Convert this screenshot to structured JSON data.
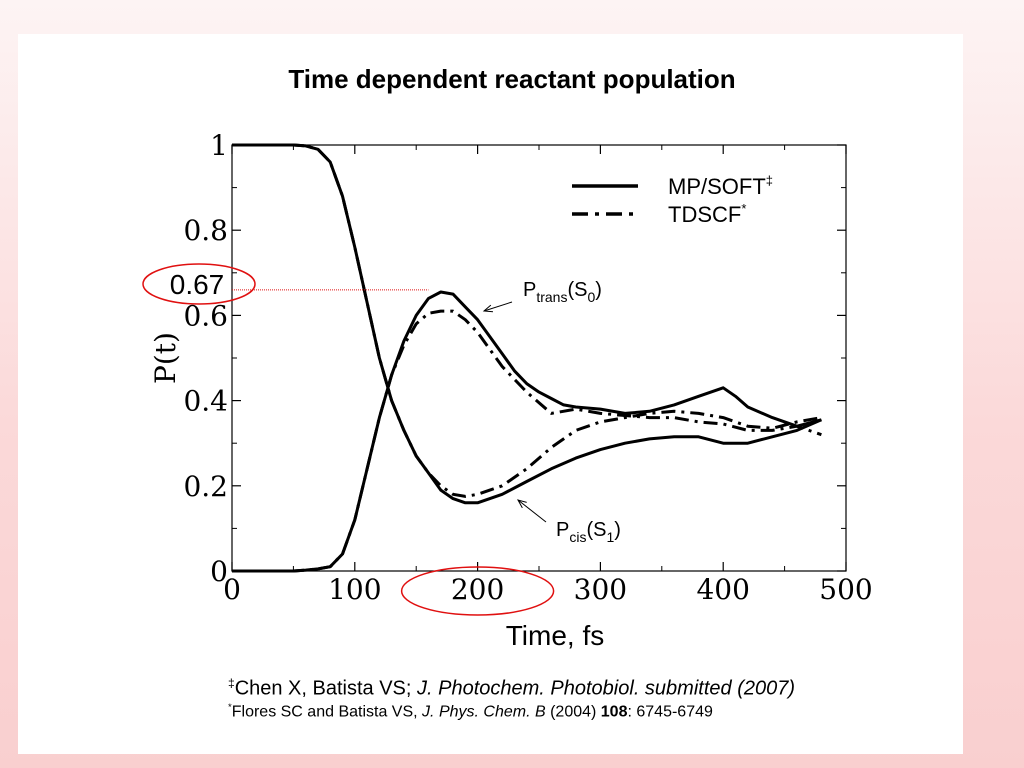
{
  "slide_title": "Time dependent reactant population",
  "chart_data": {
    "type": "line",
    "xlabel": "Time, fs",
    "ylabel": "P(t)",
    "xlim": [
      0,
      500
    ],
    "ylim": [
      0,
      1
    ],
    "xticks": [
      "0",
      "100",
      "200",
      "300",
      "400",
      "500"
    ],
    "yticks": [
      "0",
      "0.2",
      "0.4",
      "0.6",
      "0.8",
      "1"
    ],
    "grid": false,
    "legend_position": "top-right",
    "legend": [
      {
        "label": "MP/SOFT",
        "mark": "‡",
        "style": "solid"
      },
      {
        "label": "TDSCF",
        "mark": "*",
        "style": "dash-dot"
      }
    ],
    "curve_labels": [
      {
        "main": "P",
        "sub": "trans",
        "state": "S",
        "state_sub": "0",
        "at": [
          200,
          0.62
        ]
      },
      {
        "main": "P",
        "sub": "cis",
        "state": "S",
        "state_sub": "1",
        "at": [
          220,
          0.165
        ]
      }
    ],
    "highlight_value": {
      "label": "0.67",
      "y": 0.66,
      "x_end": 160,
      "color": "#e01010"
    },
    "highlight_tick": {
      "x": 200,
      "color": "#e01010"
    },
    "series": [
      {
        "id": "trans_mpsoft",
        "style": "solid",
        "x": [
          0,
          50,
          60,
          70,
          80,
          90,
          100,
          110,
          120,
          130,
          140,
          150,
          160,
          170,
          180,
          190,
          200,
          210,
          220,
          230,
          240,
          250,
          260,
          270,
          280,
          300,
          320,
          340,
          360,
          380,
          400,
          410,
          420,
          440,
          460,
          480
        ],
        "y": [
          0,
          0,
          0.002,
          0.005,
          0.01,
          0.04,
          0.12,
          0.24,
          0.36,
          0.46,
          0.54,
          0.6,
          0.64,
          0.655,
          0.65,
          0.62,
          0.59,
          0.55,
          0.51,
          0.47,
          0.44,
          0.42,
          0.405,
          0.39,
          0.385,
          0.38,
          0.37,
          0.375,
          0.39,
          0.41,
          0.43,
          0.41,
          0.385,
          0.36,
          0.34,
          0.355
        ]
      },
      {
        "id": "cis_mpsoft",
        "style": "solid",
        "x": [
          0,
          50,
          60,
          70,
          80,
          90,
          100,
          110,
          120,
          130,
          140,
          150,
          160,
          170,
          180,
          190,
          200,
          210,
          220,
          240,
          260,
          280,
          300,
          320,
          340,
          360,
          380,
          400,
          420,
          440,
          460,
          480
        ],
        "y": [
          1,
          1,
          0.998,
          0.99,
          0.96,
          0.88,
          0.76,
          0.63,
          0.5,
          0.4,
          0.33,
          0.27,
          0.23,
          0.19,
          0.17,
          0.16,
          0.16,
          0.17,
          0.18,
          0.21,
          0.24,
          0.265,
          0.285,
          0.3,
          0.31,
          0.315,
          0.315,
          0.3,
          0.3,
          0.315,
          0.33,
          0.355
        ]
      },
      {
        "id": "trans_tdscf",
        "style": "dash-dot",
        "x": [
          0,
          50,
          60,
          70,
          80,
          90,
          100,
          110,
          120,
          130,
          140,
          150,
          160,
          170,
          180,
          190,
          200,
          210,
          220,
          240,
          260,
          280,
          300,
          320,
          340,
          360,
          380,
          400,
          420,
          440,
          460,
          480
        ],
        "y": [
          0,
          0,
          0.002,
          0.005,
          0.01,
          0.04,
          0.12,
          0.24,
          0.36,
          0.46,
          0.53,
          0.58,
          0.605,
          0.61,
          0.61,
          0.59,
          0.56,
          0.52,
          0.48,
          0.42,
          0.37,
          0.38,
          0.37,
          0.365,
          0.36,
          0.36,
          0.35,
          0.345,
          0.33,
          0.33,
          0.34,
          0.32
        ]
      },
      {
        "id": "cis_tdscf",
        "style": "dash-dot",
        "x": [
          0,
          50,
          60,
          70,
          80,
          90,
          100,
          110,
          120,
          130,
          140,
          150,
          160,
          170,
          180,
          190,
          200,
          210,
          220,
          240,
          260,
          280,
          300,
          320,
          340,
          360,
          380,
          400,
          420,
          440,
          460,
          480
        ],
        "y": [
          1,
          1,
          0.998,
          0.99,
          0.96,
          0.88,
          0.76,
          0.63,
          0.5,
          0.4,
          0.33,
          0.27,
          0.23,
          0.2,
          0.18,
          0.175,
          0.18,
          0.19,
          0.2,
          0.24,
          0.29,
          0.33,
          0.35,
          0.36,
          0.37,
          0.375,
          0.37,
          0.36,
          0.34,
          0.335,
          0.35,
          0.36
        ]
      }
    ]
  },
  "references": [
    {
      "mark": "‡",
      "authors": "Chen X, Batista VS; ",
      "journal": "J. Photochem. Photobiol. submitted (2007)",
      "year": "",
      "volume": "",
      "pages": ""
    },
    {
      "mark": "*",
      "authors": "Flores SC and Batista VS, ",
      "journal": "J. Phys. Chem. B",
      "year": " (2004) ",
      "volume": "108",
      "pages": ": 6745-6749"
    }
  ]
}
